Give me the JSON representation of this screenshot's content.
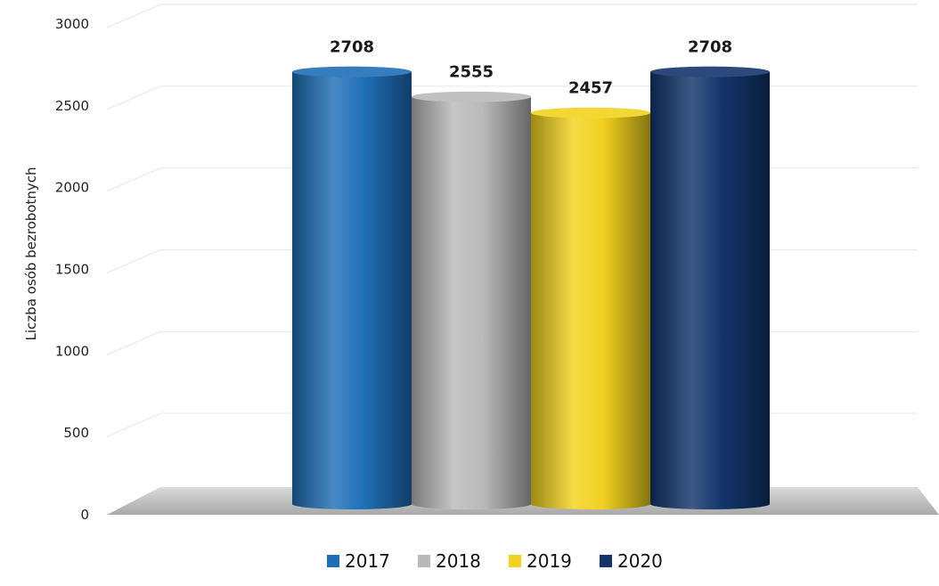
{
  "chart_data": {
    "type": "bar",
    "categories": [
      "2017",
      "2018",
      "2019",
      "2020"
    ],
    "values": [
      2708,
      2555,
      2457,
      2708
    ],
    "data_labels": [
      "2708",
      "2555",
      "2457",
      "2708"
    ],
    "ylabel": "Liczba osób bezrobotnych",
    "ylim": [
      0,
      3000
    ],
    "yticks": [
      0,
      500,
      1000,
      1500,
      2000,
      2500,
      3000
    ],
    "ytick_labels": [
      "0",
      "500",
      "1000",
      "1500",
      "2000",
      "2500",
      "3000"
    ],
    "grid": true,
    "legend_position": "bottom",
    "legend": [
      "2017",
      "2018",
      "2019",
      "2020"
    ],
    "colors": [
      "#1f6fb8",
      "#b9b9b9",
      "#f2d21e",
      "#13356b"
    ]
  }
}
